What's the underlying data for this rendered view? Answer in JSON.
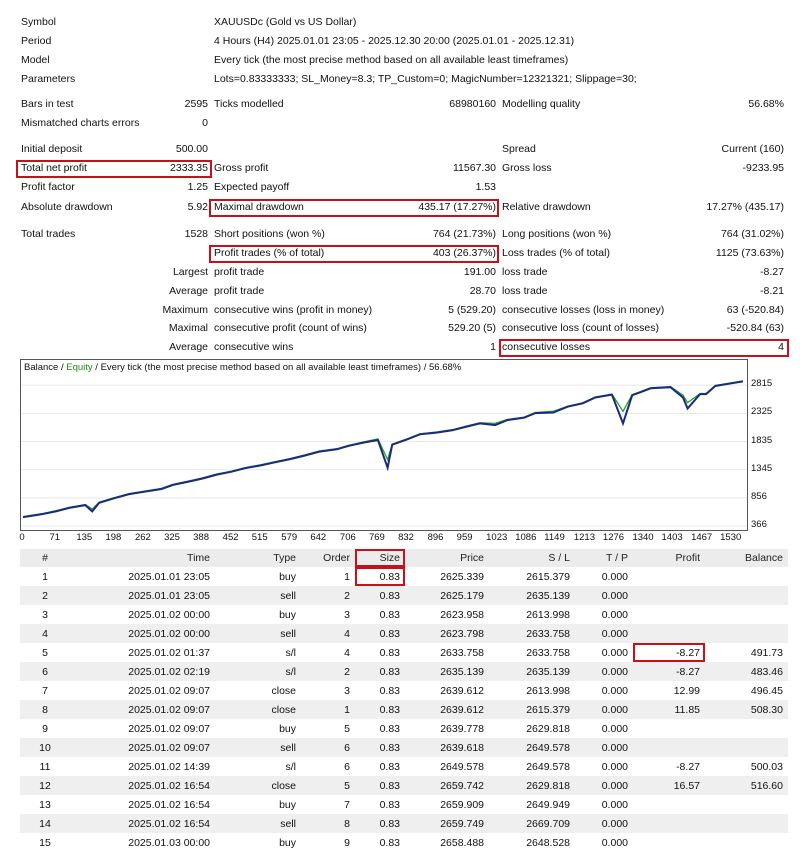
{
  "header": [
    {
      "label": "Symbol",
      "value": "XAUUSDc (Gold vs US Dollar)"
    },
    {
      "label": "Period",
      "value": "4 Hours (H4) 2025.01.01 23:05 - 2025.12.30 20:00 (2025.01.01 - 2025.12.31)"
    },
    {
      "label": "Model",
      "value": "Every tick (the most precise method based on all available least timeframes)"
    },
    {
      "label": "Parameters",
      "value": "Lots=0.83333333; SL_Money=8.3; TP_Custom=0; MagicNumber=12321321; Slippage=30;"
    }
  ],
  "stats": {
    "bars_label": "Bars in test",
    "bars_value": "2595",
    "ticks_label": "Ticks modelled",
    "ticks_value": "68980160",
    "quality_label": "Modelling quality",
    "quality_value": "56.68%",
    "mismatch_label": "Mismatched charts errors",
    "mismatch_value": "0",
    "deposit_label": "Initial deposit",
    "deposit_value": "500.00",
    "spread_label": "Spread",
    "spread_value": "Current (160)",
    "net_profit_label": "Total net profit",
    "net_profit_value": "2333.35",
    "gross_profit_label": "Gross profit",
    "gross_profit_value": "11567.30",
    "gross_loss_label": "Gross loss",
    "gross_loss_value": "-9233.95",
    "pf_label": "Profit factor",
    "pf_value": "1.25",
    "payoff_label": "Expected payoff",
    "payoff_value": "1.53",
    "abs_dd_label": "Absolute drawdown",
    "abs_dd_value": "5.92",
    "max_dd_label": "Maximal drawdown",
    "max_dd_value": "435.17 (17.27%)",
    "rel_dd_label": "Relative drawdown",
    "rel_dd_value": "17.27% (435.17)",
    "trades_label": "Total trades",
    "trades_value": "1528",
    "short_label": "Short positions (won %)",
    "short_value": "764 (21.73%)",
    "long_label": "Long positions (won %)",
    "long_value": "764 (31.02%)",
    "profit_trades_label": "Profit trades (% of total)",
    "profit_trades_value": "403 (26.37%)",
    "loss_trades_label": "Loss trades (% of total)",
    "loss_trades_value": "1125 (73.63%)",
    "largest": "Largest",
    "largest_profit_label": "profit trade",
    "largest_profit_value": "191.00",
    "largest_loss_label": "loss trade",
    "largest_loss_value": "-8.27",
    "average": "Average",
    "avg_profit_label": "profit trade",
    "avg_profit_value": "28.70",
    "avg_loss_label": "loss trade",
    "avg_loss_value": "-8.21",
    "maximum": "Maximum",
    "max_cw_label": "consecutive wins (profit in money)",
    "max_cw_value": "5 (529.20)",
    "max_cl_label": "consecutive losses (loss in money)",
    "max_cl_value": "63 (-520.84)",
    "maximal": "Maximal",
    "mx_cp_label": "consecutive profit (count of wins)",
    "mx_cp_value": "529.20 (5)",
    "mx_cl_label": "consecutive loss (count of losses)",
    "mx_cl_value": "-520.84 (63)",
    "average2": "Average",
    "avg_cw_label": "consecutive wins",
    "avg_cw_value": "1",
    "avg_cl_label": "consecutive losses",
    "avg_cl_value": "4"
  },
  "chart": {
    "title_balance": "Balance",
    "title_sep": " / ",
    "title_equity": "Equity",
    "title_rest": " / Every tick (the most precise method based on all available least timeframes) / 56.68%",
    "balance_color": "#1b2a7a",
    "equity_color": "#2aa02a"
  },
  "chart_data": {
    "type": "line",
    "title": "",
    "xlabel": "",
    "ylabel": "",
    "x_ticks": [
      "0",
      "71",
      "135",
      "198",
      "262",
      "325",
      "388",
      "452",
      "515",
      "579",
      "642",
      "706",
      "769",
      "832",
      "896",
      "959",
      "1023",
      "1086",
      "1149",
      "1213",
      "1276",
      "1340",
      "1403",
      "1467",
      "1530"
    ],
    "y_ticks": [
      "2815",
      "2325",
      "1835",
      "1345",
      "856",
      "366"
    ],
    "xlim": [
      0,
      1560
    ],
    "ylim": [
      366,
      2940
    ],
    "series": [
      {
        "name": "Balance",
        "x": [
          0,
          40,
          71,
          100,
          135,
          150,
          165,
          198,
          230,
          262,
          300,
          325,
          360,
          388,
          420,
          452,
          480,
          515,
          550,
          579,
          610,
          642,
          680,
          706,
          740,
          769,
          790,
          800,
          832,
          860,
          896,
          930,
          959,
          990,
          1023,
          1050,
          1086,
          1110,
          1149,
          1180,
          1213,
          1240,
          1276,
          1300,
          1320,
          1340,
          1360,
          1403,
          1430,
          1440,
          1467,
          1480,
          1500,
          1530,
          1560
        ],
        "y": [
          520,
          570,
          620,
          680,
          730,
          620,
          770,
          850,
          920,
          960,
          1010,
          1080,
          1140,
          1190,
          1260,
          1310,
          1370,
          1420,
          1480,
          1530,
          1590,
          1660,
          1700,
          1760,
          1820,
          1860,
          1380,
          1780,
          1870,
          1960,
          1990,
          2030,
          2090,
          2150,
          2120,
          2210,
          2250,
          2330,
          2340,
          2440,
          2500,
          2600,
          2650,
          2150,
          2640,
          2700,
          2760,
          2780,
          2600,
          2410,
          2660,
          2660,
          2800,
          2840,
          2880
        ]
      },
      {
        "name": "Equity",
        "x": [
          0,
          40,
          71,
          100,
          135,
          150,
          165,
          198,
          230,
          262,
          300,
          325,
          360,
          388,
          420,
          452,
          480,
          515,
          550,
          579,
          610,
          642,
          680,
          706,
          740,
          769,
          790,
          800,
          832,
          860,
          896,
          930,
          959,
          990,
          1023,
          1050,
          1086,
          1110,
          1149,
          1180,
          1213,
          1240,
          1276,
          1300,
          1320,
          1340,
          1360,
          1403,
          1430,
          1440,
          1467,
          1480,
          1500,
          1530,
          1560
        ],
        "y": [
          530,
          580,
          630,
          690,
          740,
          660,
          780,
          860,
          930,
          970,
          1020,
          1090,
          1150,
          1200,
          1270,
          1320,
          1380,
          1430,
          1490,
          1540,
          1600,
          1670,
          1710,
          1770,
          1830,
          1880,
          1520,
          1790,
          1880,
          1970,
          2000,
          2040,
          2100,
          2160,
          2150,
          2220,
          2260,
          2340,
          2360,
          2450,
          2510,
          2610,
          2660,
          2360,
          2650,
          2710,
          2770,
          2790,
          2640,
          2510,
          2670,
          2670,
          2810,
          2850,
          2890
        ]
      }
    ]
  },
  "table": {
    "headers": [
      "#",
      "Time",
      "Type",
      "Order",
      "Size",
      "Price",
      "S / L",
      "T / P",
      "Profit",
      "Balance"
    ],
    "rows": [
      [
        "1",
        "2025.01.01 23:05",
        "buy",
        "1",
        "0.83",
        "2625.339",
        "2615.379",
        "0.000",
        "",
        ""
      ],
      [
        "2",
        "2025.01.01 23:05",
        "sell",
        "2",
        "0.83",
        "2625.179",
        "2635.139",
        "0.000",
        "",
        ""
      ],
      [
        "3",
        "2025.01.02 00:00",
        "buy",
        "3",
        "0.83",
        "2623.958",
        "2613.998",
        "0.000",
        "",
        ""
      ],
      [
        "4",
        "2025.01.02 00:00",
        "sell",
        "4",
        "0.83",
        "2623.798",
        "2633.758",
        "0.000",
        "",
        ""
      ],
      [
        "5",
        "2025.01.02 01:37",
        "s/l",
        "4",
        "0.83",
        "2633.758",
        "2633.758",
        "0.000",
        "-8.27",
        "491.73"
      ],
      [
        "6",
        "2025.01.02 02:19",
        "s/l",
        "2",
        "0.83",
        "2635.139",
        "2635.139",
        "0.000",
        "-8.27",
        "483.46"
      ],
      [
        "7",
        "2025.01.02 09:07",
        "close",
        "3",
        "0.83",
        "2639.612",
        "2613.998",
        "0.000",
        "12.99",
        "496.45"
      ],
      [
        "8",
        "2025.01.02 09:07",
        "close",
        "1",
        "0.83",
        "2639.612",
        "2615.379",
        "0.000",
        "11.85",
        "508.30"
      ],
      [
        "9",
        "2025.01.02 09:07",
        "buy",
        "5",
        "0.83",
        "2639.778",
        "2629.818",
        "0.000",
        "",
        ""
      ],
      [
        "10",
        "2025.01.02 09:07",
        "sell",
        "6",
        "0.83",
        "2639.618",
        "2649.578",
        "0.000",
        "",
        ""
      ],
      [
        "11",
        "2025.01.02 14:39",
        "s/l",
        "6",
        "0.83",
        "2649.578",
        "2649.578",
        "0.000",
        "-8.27",
        "500.03"
      ],
      [
        "12",
        "2025.01.02 16:54",
        "close",
        "5",
        "0.83",
        "2659.742",
        "2629.818",
        "0.000",
        "16.57",
        "516.60"
      ],
      [
        "13",
        "2025.01.02 16:54",
        "buy",
        "7",
        "0.83",
        "2659.909",
        "2649.949",
        "0.000",
        "",
        ""
      ],
      [
        "14",
        "2025.01.02 16:54",
        "sell",
        "8",
        "0.83",
        "2659.749",
        "2669.709",
        "0.000",
        "",
        ""
      ],
      [
        "15",
        "2025.01.03 00:00",
        "buy",
        "9",
        "0.83",
        "2658.488",
        "2648.528",
        "0.000",
        "",
        ""
      ]
    ]
  }
}
